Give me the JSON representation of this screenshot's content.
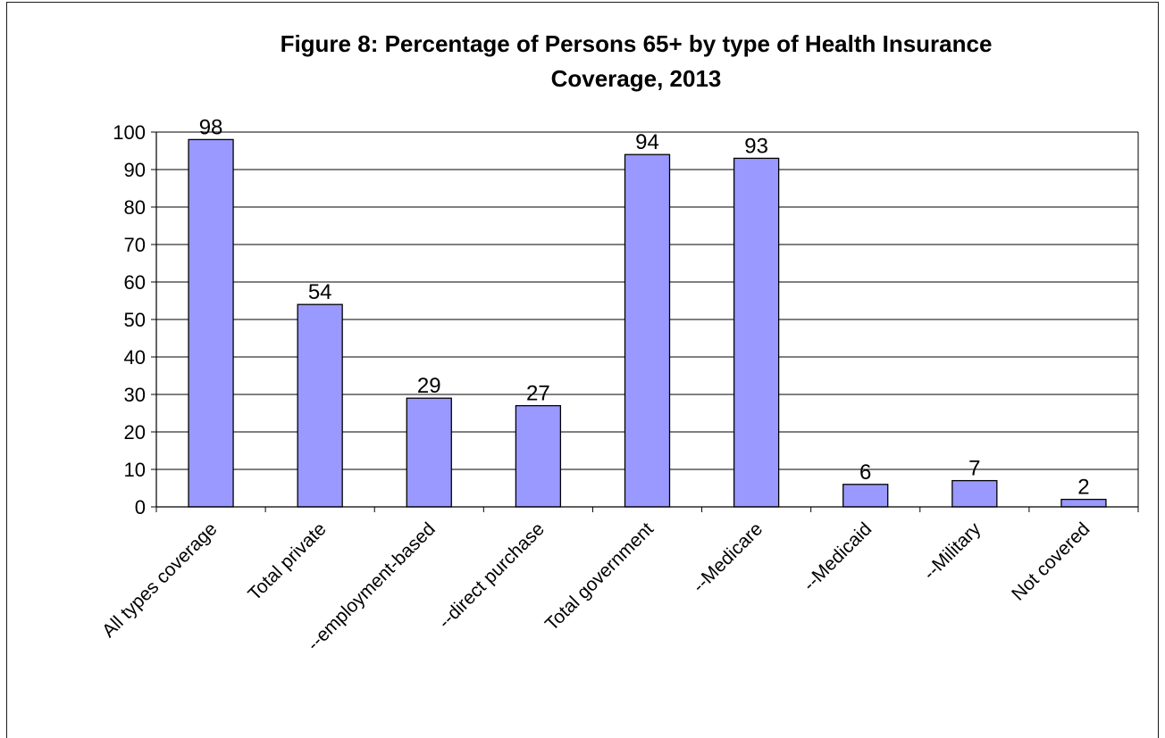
{
  "chart_data": {
    "type": "bar",
    "title_lines": [
      "Figure 8: Percentage of Persons 65+ by type of Health Insurance",
      "Coverage, 2013"
    ],
    "categories": [
      "All types coverage",
      "Total private",
      "--employment-based",
      "--direct purchase",
      "Total government",
      "--Medicare",
      "--Medicaid",
      "--Military",
      "Not covered"
    ],
    "values": [
      98,
      54,
      29,
      27,
      94,
      93,
      6,
      7,
      2
    ],
    "ylim": [
      0,
      100
    ],
    "yticks": [
      "0",
      "10",
      "20",
      "30",
      "40",
      "50",
      "60",
      "70",
      "80",
      "90",
      "100"
    ],
    "grid": true,
    "legend": "none",
    "colors": {
      "bar_fill": "#9999ff",
      "bar_stroke": "#000000",
      "grid": "#000000"
    }
  }
}
